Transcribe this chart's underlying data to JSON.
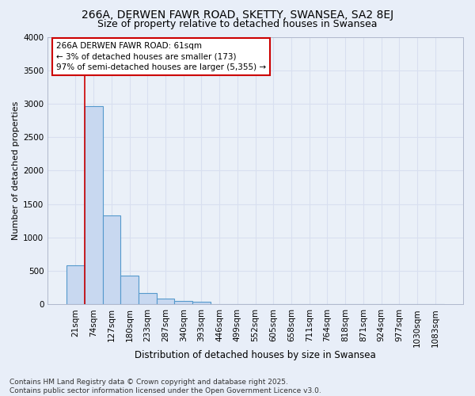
{
  "title1": "266A, DERWEN FAWR ROAD, SKETTY, SWANSEA, SA2 8EJ",
  "title2": "Size of property relative to detached houses in Swansea",
  "xlabel": "Distribution of detached houses by size in Swansea",
  "ylabel": "Number of detached properties",
  "bar_labels": [
    "21sqm",
    "74sqm",
    "127sqm",
    "180sqm",
    "233sqm",
    "287sqm",
    "340sqm",
    "393sqm",
    "446sqm",
    "499sqm",
    "552sqm",
    "605sqm",
    "658sqm",
    "711sqm",
    "764sqm",
    "818sqm",
    "871sqm",
    "924sqm",
    "977sqm",
    "1030sqm",
    "1083sqm"
  ],
  "bar_values": [
    590,
    2960,
    1330,
    430,
    175,
    90,
    55,
    35,
    5,
    5,
    0,
    0,
    0,
    0,
    0,
    0,
    0,
    0,
    0,
    0,
    0
  ],
  "bar_color": "#c8d8f0",
  "bar_edge_color": "#5599cc",
  "annotation_text": "266A DERWEN FAWR ROAD: 61sqm\n← 3% of detached houses are smaller (173)\n97% of semi-detached houses are larger (5,355) →",
  "annotation_box_color": "#ffffff",
  "annotation_box_edge_color": "#cc0000",
  "vline_color": "#cc0000",
  "ylim": [
    0,
    4000
  ],
  "yticks": [
    0,
    500,
    1000,
    1500,
    2000,
    2500,
    3000,
    3500,
    4000
  ],
  "bg_color": "#e8eef8",
  "plot_bg_color": "#eaf0f8",
  "grid_color": "#d8dff0",
  "footer_text": "Contains HM Land Registry data © Crown copyright and database right 2025.\nContains public sector information licensed under the Open Government Licence v3.0.",
  "title1_fontsize": 10,
  "title2_fontsize": 9,
  "xlabel_fontsize": 8.5,
  "ylabel_fontsize": 8,
  "tick_fontsize": 7.5,
  "annotation_fontsize": 7.5,
  "footer_fontsize": 6.5
}
